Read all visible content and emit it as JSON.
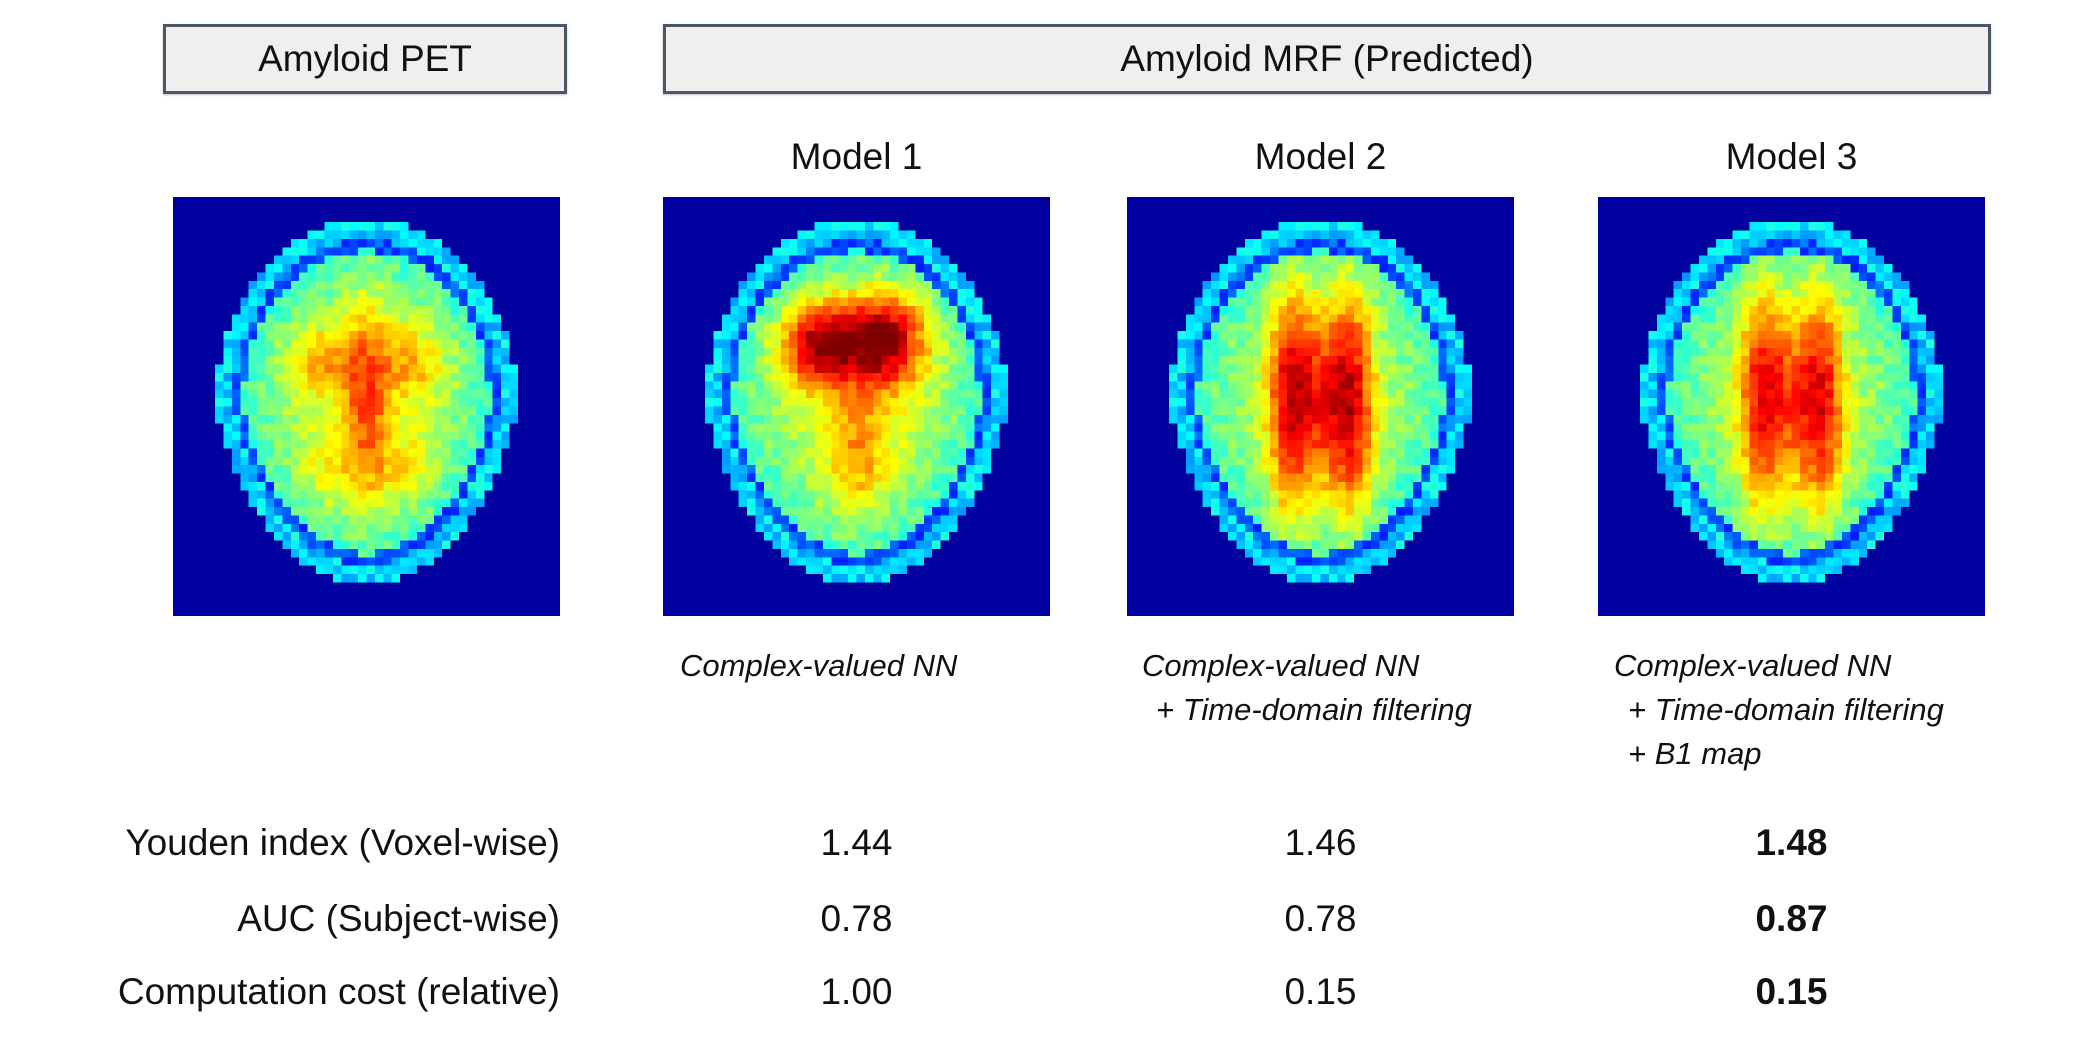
{
  "header": {
    "pet_label": "Amyloid PET",
    "mrf_label": "Amyloid MRF (Predicted)"
  },
  "models": [
    {
      "label": "Model 1",
      "caption_lines": [
        "Complex-valued NN"
      ]
    },
    {
      "label": "Model 2",
      "caption_lines": [
        "Complex-valued NN",
        "+ Time-domain filtering"
      ]
    },
    {
      "label": "Model 3",
      "caption_lines": [
        "Complex-valued NN",
        "+ Time-domain filtering",
        "+ B1 map"
      ]
    }
  ],
  "metrics_rows": [
    {
      "label": "Youden index (Voxel-wise)",
      "values": [
        "1.44",
        "1.46",
        "1.48"
      ]
    },
    {
      "label": "AUC (Subject-wise)",
      "values": [
        "0.78",
        "0.78",
        "0.87"
      ]
    },
    {
      "label": "Computation cost (relative)",
      "values": [
        "1.00",
        "0.15",
        "0.15"
      ]
    }
  ],
  "colors": {
    "header_box_bg": "#efefef",
    "header_box_border": "#4a5866",
    "brain_background": "#1a1aa0",
    "figure_background": "#ffffff"
  }
}
